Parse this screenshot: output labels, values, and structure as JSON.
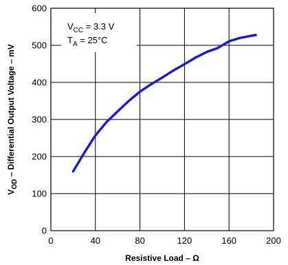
{
  "chart_data": {
    "type": "line",
    "xlabel": "Resistive Load – Ω",
    "ylabel_main": "V",
    "ylabel_sub": "OD",
    "ylabel_rest": " – Differential Output Voltage – mV",
    "xlim": [
      0,
      200
    ],
    "ylim": [
      0,
      600
    ],
    "x_ticks": [
      "0",
      "40",
      "80",
      "120",
      "160",
      "200"
    ],
    "y_ticks": [
      "0",
      "100",
      "200",
      "300",
      "400",
      "500",
      "600"
    ],
    "grid": true,
    "annotations": {
      "vcc_main": "V",
      "vcc_sub": "CC",
      "vcc_rest": " = 3.3 V",
      "ta_main": "T",
      "ta_sub": "A",
      "ta_rest": " = 25°C"
    },
    "series": [
      {
        "color": "#1a1ae6",
        "x": [
          20,
          30,
          40,
          50,
          60,
          70,
          80,
          90,
          100,
          110,
          120,
          130,
          140,
          150,
          160,
          170,
          184
        ],
        "y": [
          160,
          210,
          257,
          293,
          322,
          350,
          375,
          395,
          413,
          432,
          449,
          467,
          482,
          493,
          511,
          520,
          528
        ]
      }
    ]
  }
}
